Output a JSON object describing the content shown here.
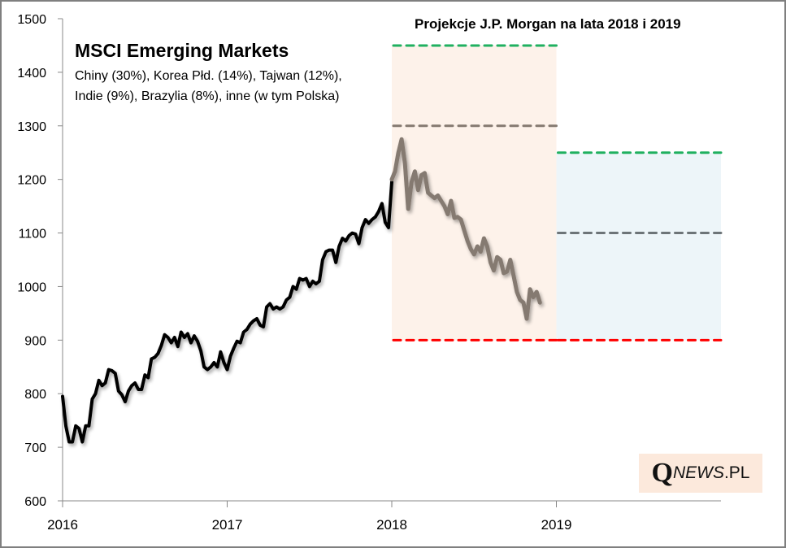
{
  "chart_data": {
    "type": "line",
    "title": "MSCI Emerging Markets",
    "subtitle_lines": [
      "Chiny (30%), Korea Płd. (14%), Tajwan (12%),",
      "Indie (9%), Brazylia (8%), inne (w tym Polska)"
    ],
    "projection_title": "Projekcje J.P. Morgan na lata 2018 i 2019",
    "xlabel": "",
    "ylabel": "",
    "ylim": [
      600,
      1500
    ],
    "xlim": [
      2016,
      2020
    ],
    "y_ticks": [
      600,
      700,
      800,
      900,
      1000,
      1100,
      1200,
      1300,
      1400,
      1500
    ],
    "x_ticks": [
      "2016",
      "2017",
      "2018",
      "2019"
    ],
    "x_tick_values": [
      2016,
      2017,
      2018,
      2019
    ],
    "grid": false,
    "series": [
      {
        "name": "MSCI EM 2016-2017",
        "color": "#000000",
        "x": [
          2016.0,
          2016.02,
          2016.04,
          2016.06,
          2016.08,
          2016.1,
          2016.12,
          2016.14,
          2016.16,
          2016.18,
          2016.2,
          2016.22,
          2016.24,
          2016.26,
          2016.28,
          2016.3,
          2016.32,
          2016.34,
          2016.36,
          2016.38,
          2016.4,
          2016.42,
          2016.44,
          2016.46,
          2016.48,
          2016.5,
          2016.52,
          2016.54,
          2016.56,
          2016.58,
          2016.6,
          2016.62,
          2016.64,
          2016.66,
          2016.68,
          2016.7,
          2016.72,
          2016.74,
          2016.76,
          2016.78,
          2016.8,
          2016.82,
          2016.84,
          2016.86,
          2016.88,
          2016.9,
          2016.92,
          2016.94,
          2016.96,
          2016.98,
          2017.0,
          2017.02,
          2017.04,
          2017.06,
          2017.08,
          2017.1,
          2017.12,
          2017.14,
          2017.16,
          2017.18,
          2017.2,
          2017.22,
          2017.24,
          2017.26,
          2017.28,
          2017.3,
          2017.32,
          2017.34,
          2017.36,
          2017.38,
          2017.4,
          2017.42,
          2017.44,
          2017.46,
          2017.48,
          2017.5,
          2017.52,
          2017.54,
          2017.56,
          2017.58,
          2017.6,
          2017.62,
          2017.64,
          2017.66,
          2017.68,
          2017.7,
          2017.72,
          2017.74,
          2017.76,
          2017.78,
          2017.8,
          2017.82,
          2017.84,
          2017.86,
          2017.88,
          2017.9,
          2017.92,
          2017.94,
          2017.96,
          2017.98,
          2018.0
        ],
        "values": [
          795,
          740,
          710,
          710,
          740,
          735,
          710,
          740,
          740,
          790,
          800,
          825,
          815,
          820,
          845,
          843,
          838,
          805,
          798,
          785,
          805,
          815,
          820,
          808,
          808,
          835,
          830,
          865,
          868,
          875,
          890,
          910,
          905,
          895,
          905,
          888,
          915,
          905,
          912,
          895,
          908,
          898,
          880,
          850,
          845,
          850,
          858,
          850,
          878,
          858,
          845,
          870,
          885,
          898,
          895,
          915,
          920,
          930,
          936,
          940,
          928,
          925,
          962,
          968,
          958,
          962,
          958,
          962,
          975,
          980,
          1000,
          995,
          1015,
          1012,
          1015,
          1000,
          1010,
          1005,
          1010,
          1050,
          1065,
          1068,
          1068,
          1045,
          1075,
          1090,
          1085,
          1095,
          1100,
          1098,
          1080,
          1110,
          1125,
          1118,
          1125,
          1130,
          1140,
          1155,
          1120,
          1110,
          1195
        ],
        "stroke_width": 4
      },
      {
        "name": "MSCI EM 2018",
        "color": "#857a71",
        "x": [
          2018.0,
          2018.02,
          2018.04,
          2018.06,
          2018.08,
          2018.1,
          2018.12,
          2018.14,
          2018.16,
          2018.18,
          2018.2,
          2018.22,
          2018.24,
          2018.26,
          2018.28,
          2018.3,
          2018.32,
          2018.34,
          2018.36,
          2018.38,
          2018.4,
          2018.42,
          2018.44,
          2018.46,
          2018.48,
          2018.5,
          2018.52,
          2018.54,
          2018.56,
          2018.58,
          2018.6,
          2018.62,
          2018.64,
          2018.66,
          2018.68,
          2018.7,
          2018.72,
          2018.74,
          2018.76,
          2018.78,
          2018.8,
          2018.82,
          2018.84,
          2018.86,
          2018.88,
          2018.9
        ],
        "values": [
          1200,
          1215,
          1250,
          1275,
          1230,
          1145,
          1195,
          1215,
          1180,
          1208,
          1212,
          1175,
          1170,
          1165,
          1170,
          1160,
          1150,
          1135,
          1160,
          1128,
          1130,
          1125,
          1105,
          1085,
          1070,
          1060,
          1075,
          1065,
          1090,
          1075,
          1045,
          1030,
          1055,
          1050,
          1025,
          1028,
          1050,
          1020,
          990,
          975,
          970,
          940,
          995,
          980,
          990,
          970
        ],
        "stroke_width": 5
      }
    ],
    "projection_zones": [
      {
        "period": "2018",
        "x_range": [
          2018,
          2019
        ],
        "fill": "#fdf2ea",
        "high": 1450,
        "mid": 1300,
        "low": 900
      },
      {
        "period": "2019",
        "x_range": [
          2019,
          2020
        ],
        "fill": "#edf5f9",
        "high": 1250,
        "mid": 1100,
        "low": 900
      }
    ],
    "projection_line_colors": {
      "high": "#20b060",
      "mid_2018": "#857a71",
      "mid_2019": "#6d7478",
      "low": "#ff0000"
    }
  },
  "logo": {
    "q": "Q",
    "news": "NEWS",
    "pl": ".PL"
  }
}
